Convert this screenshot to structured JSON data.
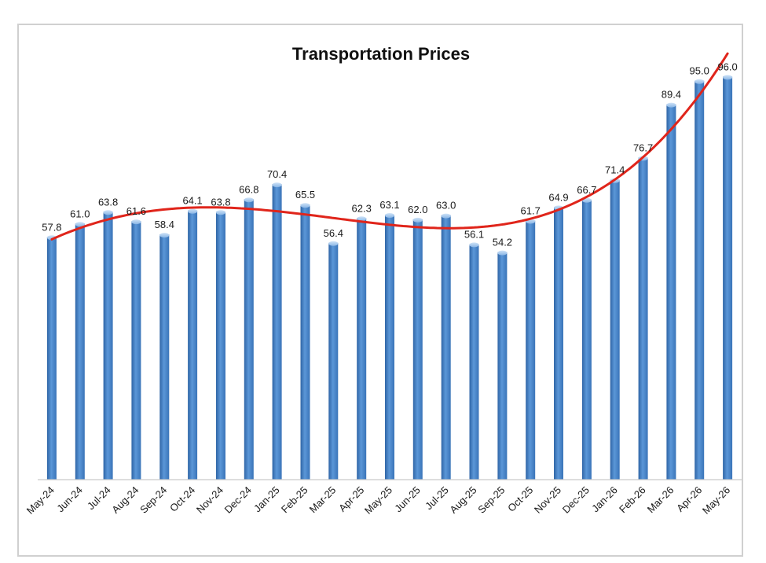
{
  "chart_data": {
    "type": "bar",
    "title": "Transportation Prices",
    "xlabel": "",
    "ylabel": "",
    "ylim": [
      0,
      100
    ],
    "grid": false,
    "legend": "none",
    "categories": [
      "May-24",
      "Jun-24",
      "Jul-24",
      "Aug-24",
      "Sep-24",
      "Oct-24",
      "Nov-24",
      "Dec-24",
      "Jan-25",
      "Feb-25",
      "Mar-25",
      "Apr-25",
      "May-25",
      "Jun-25",
      "Jul-25",
      "Aug-25",
      "Sep-25",
      "Oct-25",
      "Nov-25",
      "Dec-25",
      "Jan-26",
      "Feb-26",
      "Mar-26",
      "Apr-26",
      "May-26"
    ],
    "values": [
      57.8,
      61.0,
      63.8,
      61.6,
      58.4,
      64.1,
      63.8,
      66.8,
      70.4,
      65.5,
      56.4,
      62.3,
      63.1,
      62.0,
      63.0,
      56.1,
      54.2,
      61.7,
      64.9,
      66.7,
      71.4,
      76.7,
      89.4,
      95.0,
      96.0
    ],
    "value_labels": [
      "57.8",
      "61.0",
      "63.8",
      "61.6",
      "58.4",
      "64.1",
      "63.8",
      "66.8",
      "70.4",
      "65.5",
      "56.4",
      "62.3",
      "63.1",
      "62.0",
      "63.0",
      "56.1",
      "54.2",
      "61.7",
      "64.9",
      "66.7",
      "71.4",
      "76.7",
      "89.4",
      "95.0",
      "96.0"
    ],
    "trendline": {
      "type": "polynomial",
      "color": "#e0251b"
    },
    "colors": {
      "bar": "#4a86c8",
      "bar_dark": "#2f65a6",
      "bar_light": "#9cc3ec",
      "axis": "#c9c9c9"
    }
  }
}
